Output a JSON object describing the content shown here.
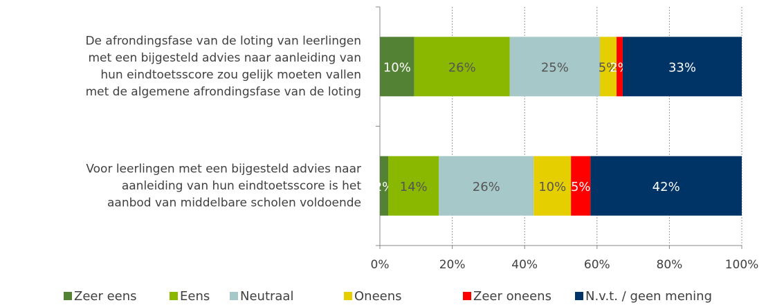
{
  "chart_data": {
    "type": "stacked-barh",
    "categories": [
      [
        "De afrondingsfase van de loting van leerlingen",
        "met een bijgesteld advies naar aanleiding van",
        "hun eindtoetsscore zou gelijk moeten vallen",
        "met de algemene afrondingsfase van de loting"
      ],
      [
        "Voor leerlingen met een bijgesteld advies naar",
        "aanleiding van hun eindtoetsscore is het",
        "aanbod van middelbare scholen voldoende"
      ]
    ],
    "series": [
      {
        "name": "Zeer eens",
        "color": "#548235",
        "values": [
          9.5,
          2.3
        ],
        "value_labels": [
          "10%",
          "2%"
        ]
      },
      {
        "name": "Eens",
        "color": "#8ab800",
        "values": [
          26.4,
          14.0
        ],
        "value_labels": [
          "26%",
          "14%"
        ]
      },
      {
        "name": "Neutraal",
        "color": "#a6c8c8",
        "values": [
          24.9,
          26.2
        ],
        "value_labels": [
          "25%",
          "26%"
        ]
      },
      {
        "name": "Oneens",
        "color": "#e5cf00",
        "values": [
          4.6,
          10.3
        ],
        "value_labels": [
          "5%",
          "10%"
        ]
      },
      {
        "name": "Zeer oneens",
        "color": "#ff0000",
        "values": [
          1.7,
          5.4
        ],
        "value_labels": [
          "2%",
          "5%"
        ]
      },
      {
        "name": "N.v.t. / geen mening",
        "color": "#003366",
        "values": [
          32.9,
          41.8
        ],
        "value_labels": [
          "33%",
          "42%"
        ]
      }
    ],
    "xlim": [
      0,
      100
    ],
    "xticks": [
      {
        "value": 0,
        "label": "0%"
      },
      {
        "value": 20,
        "label": "20%"
      },
      {
        "value": 40,
        "label": "40%"
      },
      {
        "value": 60,
        "label": "60%"
      },
      {
        "value": 80,
        "label": "80%"
      },
      {
        "value": 100,
        "label": "100%"
      }
    ],
    "grid": true
  }
}
